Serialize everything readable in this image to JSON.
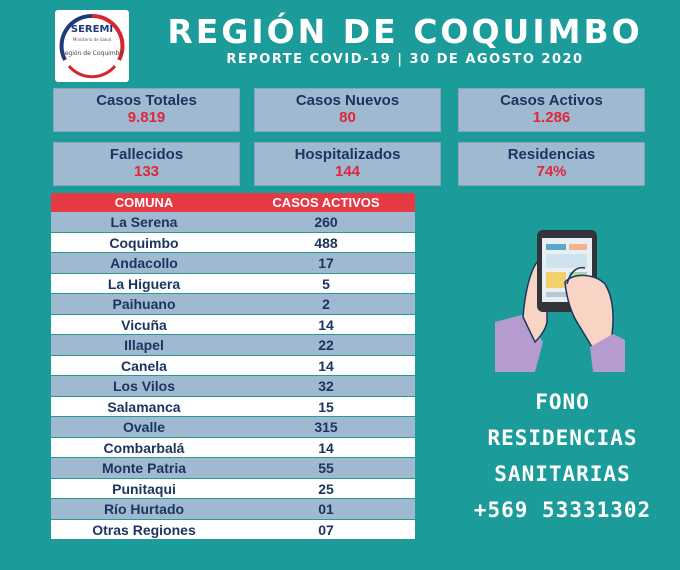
{
  "logo": {
    "name": "SEREMI",
    "sub": "Ministerio de Salud",
    "region": "Región de Coquimbo"
  },
  "header": {
    "title": "REGIÓN DE COQUIMBO",
    "subtitle": "REPORTE COVID-19 | 30 DE AGOSTO 2020"
  },
  "stats": [
    {
      "label": "Casos Totales",
      "value": "9.819"
    },
    {
      "label": "Casos Nuevos",
      "value": "80"
    },
    {
      "label": "Casos Activos",
      "value": "1.286"
    },
    {
      "label": "Fallecidos",
      "value": "133"
    },
    {
      "label": "Hospitalizados",
      "value": "144"
    },
    {
      "label": "Residencias",
      "value": "74%"
    }
  ],
  "table": {
    "headers": [
      "COMUNA",
      "CASOS ACTIVOS"
    ],
    "rows": [
      {
        "comuna": "La Serena",
        "casos": "260"
      },
      {
        "comuna": "Coquimbo",
        "casos": "488"
      },
      {
        "comuna": "Andacollo",
        "casos": "17"
      },
      {
        "comuna": "La Higuera",
        "casos": "5"
      },
      {
        "comuna": "Paihuano",
        "casos": "2"
      },
      {
        "comuna": "Vicuña",
        "casos": "14"
      },
      {
        "comuna": "Illapel",
        "casos": "22"
      },
      {
        "comuna": "Canela",
        "casos": "14"
      },
      {
        "comuna": "Los Vilos",
        "casos": "32"
      },
      {
        "comuna": "Salamanca",
        "casos": "15"
      },
      {
        "comuna": "Ovalle",
        "casos": "315"
      },
      {
        "comuna": "Combarbalá",
        "casos": "14"
      },
      {
        "comuna": "Monte Patria",
        "casos": "55"
      },
      {
        "comuna": "Punitaqui",
        "casos": "25"
      },
      {
        "comuna": "Río Hurtado",
        "casos": "01"
      },
      {
        "comuna": "Otras Regiones",
        "casos": "07"
      }
    ]
  },
  "fono": {
    "line1": "FONO RESIDENCIAS",
    "line2": "SANITARIAS",
    "line3": "+569 53331302"
  },
  "icons": {
    "illustration": "hand-holding-phone-icon"
  },
  "colors": {
    "background": "#1b9b9a",
    "stat_bg": "#9fbad0",
    "accent_red": "#e0263a",
    "header_red": "#e53a43",
    "navy": "#1c3560"
  }
}
